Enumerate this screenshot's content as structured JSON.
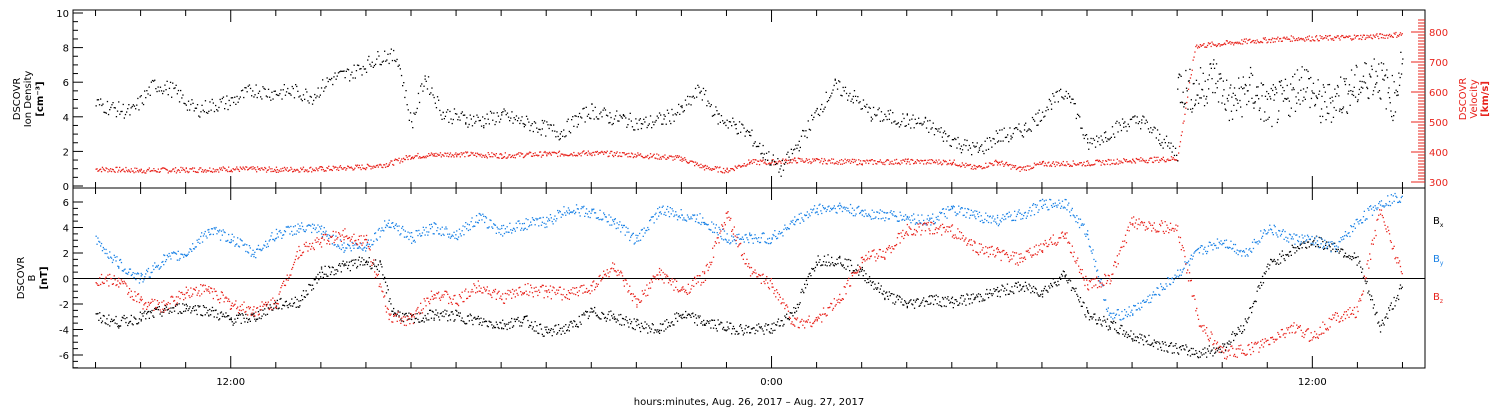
{
  "chart_data": [
    {
      "type": "scatter",
      "panel": "top",
      "ylabel_left": [
        "DSCOVR",
        "Ion Density",
        "[cm⁻³]"
      ],
      "ylabel_right": [
        "DSCOVR",
        "Velocity",
        "[km/s]"
      ],
      "yleft_ticks": [
        "0",
        "2",
        "4",
        "6",
        "8",
        "10"
      ],
      "yleft_ylim": [
        0,
        10
      ],
      "yright_ticks": [
        "300",
        "400",
        "500",
        "600",
        "700",
        "800"
      ],
      "yright_ylim": [
        290,
        850
      ],
      "x_hours_range": [
        8.5,
        38.5
      ],
      "series": [
        {
          "axis": "left",
          "color": "#000000",
          "x_hours": [
            9.0,
            9.4,
            9.8,
            10.3,
            10.7,
            11.2,
            11.6,
            12.0,
            12.5,
            12.9,
            13.4,
            13.8,
            14.2,
            14.7,
            15.1,
            15.4,
            15.7,
            16.0,
            16.3,
            16.7,
            17.2,
            17.6,
            18.0,
            18.5,
            18.9,
            19.3,
            19.7,
            20.0,
            20.4,
            20.7,
            21.1,
            21.6,
            22.0,
            22.4,
            22.8,
            23.2,
            23.5,
            23.8,
            24.2,
            24.6,
            25.0,
            25.4,
            25.8,
            26.2,
            26.6,
            27.0,
            27.4,
            27.8,
            28.2,
            28.6,
            29.0,
            29.3,
            29.6,
            29.9,
            30.2,
            30.6,
            31.0,
            31.4,
            31.8,
            32.2,
            32.6,
            33.0
          ],
          "values": [
            4.8,
            4.5,
            4.3,
            5.9,
            5.6,
            4.4,
            4.7,
            4.9,
            5.6,
            5.4,
            5.5,
            5.2,
            6.2,
            6.6,
            7.2,
            7.6,
            7.4,
            3.6,
            6.3,
            4.2,
            3.9,
            3.8,
            4.1,
            3.7,
            3.4,
            3.1,
            3.9,
            4.4,
            4.0,
            3.9,
            3.6,
            3.9,
            4.4,
            5.6,
            4.0,
            3.5,
            3.0,
            2.0,
            1.0,
            2.5,
            4.3,
            5.8,
            5.2,
            4.2,
            4.0,
            3.8,
            3.6,
            3.0,
            2.4,
            2.1,
            2.9,
            3.0,
            3.3,
            4.0,
            4.9,
            5.5,
            2.4,
            3.0,
            3.6,
            3.8,
            2.8,
            1.9
          ]
        },
        {
          "axis": "left",
          "color": "#000000",
          "x_hours": [
            33.0,
            33.4,
            33.8,
            34.2,
            34.6,
            35.0,
            35.4,
            35.8,
            36.2,
            36.6,
            37.0,
            37.4,
            37.8,
            38.0
          ],
          "values": [
            5.9,
            5.4,
            6.4,
            4.7,
            5.7,
            4.5,
            5.0,
            6.2,
            4.6,
            5.3,
            5.8,
            6.6,
            5.0,
            7.6
          ]
        },
        {
          "axis": "right",
          "color": "#e8241d",
          "x_hours": [
            9.0,
            10.0,
            11.0,
            12.0,
            13.0,
            14.0,
            15.0,
            15.5,
            16.0,
            16.5,
            17.0,
            18.0,
            19.0,
            20.0,
            21.0,
            22.0,
            22.5,
            23.0,
            23.5,
            24.0,
            24.5,
            25.0,
            26.0,
            27.0,
            28.0,
            28.5,
            29.0,
            29.5,
            30.0,
            31.0,
            32.0,
            32.5,
            33.0,
            33.4,
            33.8,
            34.5,
            35.5,
            36.5,
            37.5,
            38.0
          ],
          "values": [
            345,
            340,
            342,
            345,
            343,
            345,
            352,
            362,
            388,
            392,
            395,
            390,
            395,
            398,
            392,
            380,
            350,
            340,
            368,
            368,
            374,
            372,
            368,
            370,
            368,
            348,
            368,
            345,
            362,
            364,
            374,
            376,
            380,
            756,
            760,
            770,
            780,
            782,
            788,
            795
          ]
        }
      ]
    },
    {
      "type": "scatter",
      "panel": "bottom",
      "ylabel_left": [
        "DSCOVR",
        "B",
        "[nT]"
      ],
      "y_ticks": [
        "-6",
        "-4",
        "-2",
        "0",
        "2",
        "4",
        "6"
      ],
      "ylim": [
        -7.2,
        7.0
      ],
      "x_hours_range": [
        8.5,
        38.5
      ],
      "legend": [
        {
          "label": "B",
          "sub": "x",
          "color": "#000000"
        },
        {
          "label": "B",
          "sub": "y",
          "color": "#1a82e6"
        },
        {
          "label": "B",
          "sub": "z",
          "color": "#e8241d"
        }
      ],
      "series": [
        {
          "name": "Bx",
          "color": "#000000",
          "x_hours": [
            9.0,
            9.5,
            10.0,
            10.5,
            11.0,
            11.5,
            12.0,
            12.5,
            13.0,
            13.5,
            14.0,
            14.5,
            15.0,
            15.3,
            15.6,
            16.0,
            16.5,
            17.0,
            17.5,
            18.0,
            18.5,
            19.0,
            19.5,
            20.0,
            20.5,
            21.0,
            21.5,
            22.0,
            22.5,
            23.0,
            23.5,
            24.0,
            24.5,
            25.0,
            25.5,
            26.0,
            26.5,
            27.0,
            27.5,
            28.0,
            28.5,
            29.0,
            29.5,
            30.0,
            30.5,
            31.0,
            31.5,
            32.0,
            32.5,
            33.0,
            33.5,
            34.0,
            34.5,
            35.0,
            35.5,
            36.0,
            36.5,
            37.0,
            37.5,
            38.0
          ],
          "values": [
            -3.0,
            -3.4,
            -3.0,
            -2.5,
            -2.2,
            -2.5,
            -3.2,
            -3.0,
            -2.0,
            -1.8,
            0.5,
            1.0,
            1.4,
            1.0,
            -2.6,
            -3.2,
            -2.8,
            -2.9,
            -3.3,
            -3.6,
            -3.2,
            -4.2,
            -3.8,
            -2.6,
            -3.0,
            -3.6,
            -4.0,
            -2.8,
            -3.4,
            -3.8,
            -4.0,
            -3.9,
            -2.5,
            1.5,
            1.5,
            0.5,
            -1.2,
            -2.0,
            -1.6,
            -1.8,
            -1.5,
            -1.0,
            -0.6,
            -1.0,
            0.4,
            -2.8,
            -3.6,
            -4.5,
            -5.0,
            -5.5,
            -5.8,
            -5.4,
            -3.5,
            1.0,
            2.2,
            3.0,
            2.5,
            1.5,
            -3.8,
            -0.5
          ]
        },
        {
          "name": "By",
          "color": "#1a82e6",
          "x_hours": [
            9.0,
            9.5,
            10.0,
            10.5,
            11.0,
            11.5,
            12.0,
            12.5,
            13.0,
            13.5,
            14.0,
            14.5,
            15.0,
            15.5,
            16.0,
            16.5,
            17.0,
            17.5,
            18.0,
            18.5,
            19.0,
            19.5,
            20.0,
            20.5,
            21.0,
            21.5,
            22.0,
            22.5,
            23.0,
            23.5,
            24.0,
            24.5,
            25.0,
            25.5,
            26.0,
            26.5,
            27.0,
            27.5,
            28.0,
            28.5,
            29.0,
            29.5,
            30.0,
            30.5,
            31.0,
            31.5,
            32.0,
            32.5,
            33.0,
            33.5,
            34.0,
            34.5,
            35.0,
            35.5,
            36.0,
            36.5,
            37.0,
            37.5,
            38.0
          ],
          "values": [
            3.0,
            1.2,
            0.0,
            1.5,
            2.0,
            3.8,
            3.2,
            2.0,
            3.5,
            4.0,
            3.8,
            2.5,
            2.6,
            4.5,
            3.2,
            4.0,
            3.5,
            4.8,
            3.8,
            4.3,
            4.5,
            5.5,
            5.2,
            4.5,
            3.0,
            5.4,
            5.0,
            4.6,
            3.2,
            3.2,
            3.2,
            4.5,
            5.5,
            5.6,
            5.2,
            5.0,
            4.8,
            4.6,
            5.4,
            5.0,
            4.6,
            5.0,
            5.8,
            6.0,
            3.5,
            -3.0,
            -2.5,
            -1.2,
            0.4,
            2.2,
            3.0,
            2.0,
            4.0,
            3.2,
            3.0,
            2.4,
            4.5,
            6.0,
            6.5
          ]
        },
        {
          "name": "Bz",
          "color": "#e8241d",
          "x_hours": [
            9.0,
            9.5,
            10.0,
            10.5,
            11.0,
            11.5,
            12.0,
            12.5,
            13.0,
            13.5,
            14.0,
            14.5,
            15.0,
            15.5,
            16.0,
            16.5,
            17.0,
            17.5,
            18.0,
            18.5,
            19.0,
            19.5,
            20.0,
            20.5,
            21.0,
            21.5,
            22.0,
            22.5,
            23.0,
            23.5,
            24.0,
            24.5,
            25.0,
            25.5,
            26.0,
            26.5,
            27.0,
            27.5,
            28.0,
            28.5,
            29.0,
            29.5,
            30.0,
            30.5,
            31.0,
            31.5,
            32.0,
            32.5,
            33.0,
            33.5,
            34.0,
            34.5,
            35.0,
            35.5,
            36.0,
            36.5,
            37.0,
            37.5,
            38.0
          ],
          "values": [
            0.0,
            -0.2,
            -1.8,
            -2.2,
            -1.0,
            -0.8,
            -2.0,
            -2.5,
            -1.8,
            2.2,
            3.0,
            3.5,
            3.0,
            -3.0,
            -3.2,
            -1.0,
            -1.8,
            -0.5,
            -1.5,
            -0.8,
            -1.0,
            -1.2,
            -0.6,
            1.0,
            -2.0,
            0.5,
            -1.0,
            0.2,
            5.0,
            0.6,
            -0.4,
            -3.5,
            -3.2,
            -1.6,
            1.6,
            2.0,
            3.8,
            4.0,
            3.8,
            2.5,
            2.0,
            1.5,
            2.5,
            3.5,
            -0.5,
            0.0,
            4.5,
            4.2,
            3.8,
            -3.5,
            -5.8,
            -5.6,
            -5.0,
            -3.8,
            -4.5,
            -3.0,
            -2.5,
            5.5,
            0.2
          ]
        }
      ]
    }
  ],
  "x_axis": {
    "tick_labels": [
      {
        "hour": 12,
        "label": "12:00"
      },
      {
        "hour": 24,
        "label": "0:00"
      },
      {
        "hour": 36,
        "label": "12:00"
      }
    ],
    "title": "hours:minutes, Aug. 26, 2017 – Aug. 27, 2017"
  }
}
